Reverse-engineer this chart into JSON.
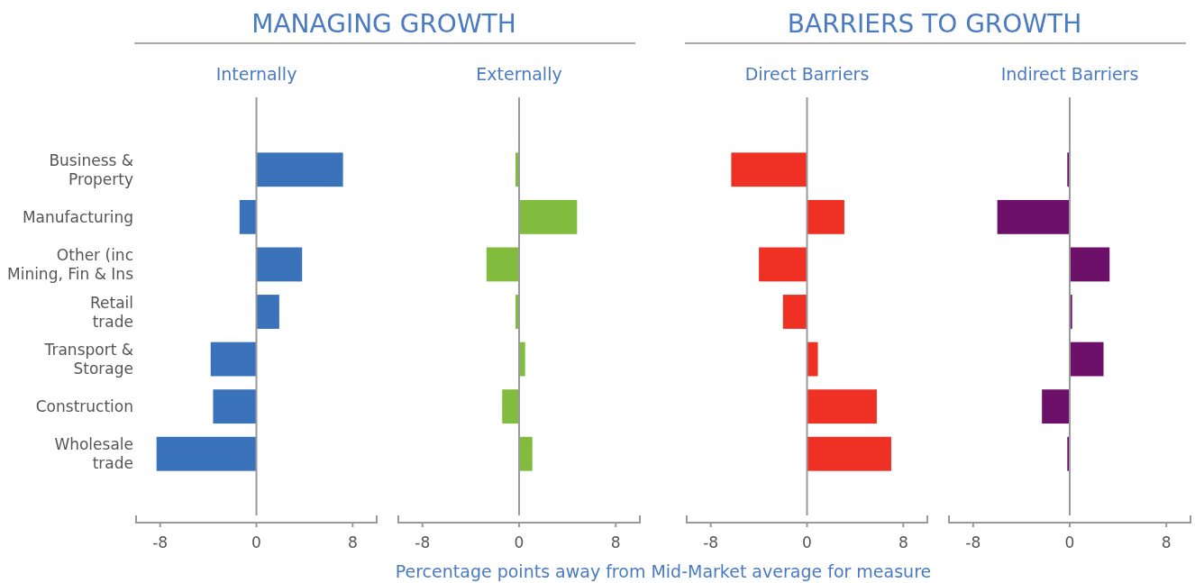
{
  "chart_data": [
    {
      "type": "bar",
      "orientation": "horizontal",
      "title": "MANAGING GROWTH",
      "subtitle": "Internally",
      "xlabel": "Percentage points away from Mid-Market average for measure",
      "categories": [
        "Business & Property",
        "Manufacturing",
        "Other (inc Mining, Fin & Ins",
        "Retail trade",
        "Transport & Storage",
        "Construction",
        "Wholesale trade"
      ],
      "values": [
        7.2,
        -1.4,
        3.8,
        1.9,
        -3.8,
        -3.6,
        -8.3
      ],
      "color": "#3a73b9",
      "xlim": [
        -10,
        10
      ],
      "xticks": [
        -8,
        0,
        8
      ]
    },
    {
      "type": "bar",
      "orientation": "horizontal",
      "subtitle": "Externally",
      "categories": [
        "Business & Property",
        "Manufacturing",
        "Other (inc Mining, Fin & Ins",
        "Retail trade",
        "Transport & Storage",
        "Construction",
        "Wholesale trade"
      ],
      "values": [
        -0.3,
        4.8,
        -2.7,
        -0.3,
        0.5,
        -1.4,
        1.1
      ],
      "color": "#82bc3e",
      "xlim": [
        -10,
        10
      ],
      "xticks": [
        -8,
        0,
        8
      ],
      "tick_labels": "x"
    },
    {
      "type": "bar",
      "orientation": "horizontal",
      "title": "BARRIERS TO GROWTH",
      "subtitle": "Direct Barriers",
      "categories": [
        "Business & Property",
        "Manufacturing",
        "Other (inc Mining, Fin & Ins",
        "Retail trade",
        "Transport & Storage",
        "Construction",
        "Wholesale trade"
      ],
      "values": [
        -6.3,
        3.1,
        -4.0,
        -2.0,
        0.9,
        5.8,
        7.0
      ],
      "color": "#ee3124",
      "xlim": [
        -10,
        10
      ],
      "xticks": [
        -8,
        0,
        8
      ],
      "tick_labels": "x"
    },
    {
      "type": "bar",
      "orientation": "horizontal",
      "subtitle": "Indirect Barriers",
      "categories": [
        "Business & Property",
        "Manufacturing",
        "Other (inc Mining, Fin & Ins",
        "Retail trade",
        "Transport & Storage",
        "Construction",
        "Wholesale trade"
      ],
      "values": [
        -0.2,
        -6.0,
        3.3,
        0.2,
        2.8,
        -2.3,
        -0.2
      ],
      "color": "#6d1069",
      "xlim": [
        -10,
        10
      ],
      "xticks": [
        -8,
        0,
        8
      ],
      "tick_labels": "x"
    }
  ]
}
